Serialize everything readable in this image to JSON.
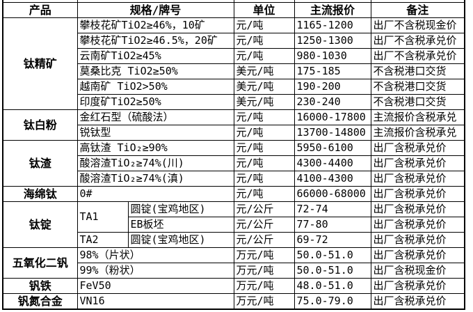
{
  "table_title": "titanium-vanadium-price-table",
  "header": {
    "product": "产品",
    "spec": "规格/牌号",
    "unit": "单位",
    "price": "主流报价",
    "note": "备注"
  },
  "rows": [
    {
      "product": "钛精矿",
      "spec": "攀枝花矿TiO2≥46%，10矿",
      "unit": "元/吨",
      "price": "1165-1200",
      "note": "出厂不含税现金价"
    },
    {
      "spec": "攀枝花矿TiO2≥46.5%，20矿",
      "unit": "元/吨",
      "price": "1250-1300",
      "note": "出厂不含税承兑价"
    },
    {
      "spec": "云南矿TiO2≥45%",
      "unit": "元/吨",
      "price": "980-1030",
      "note": "出厂不含税承兑价"
    },
    {
      "spec": "莫桑比克 TiO2≥50%",
      "unit": "美元/吨",
      "price": "175-185",
      "note": "不含税港口交货"
    },
    {
      "spec": "越南矿 TiO2>50%",
      "unit": "美元/吨",
      "price": "190-200",
      "note": "不含税港口交货"
    },
    {
      "spec": "印度矿TiO2≥50%",
      "unit": "美元/吨",
      "price": "230-240",
      "note": "不含税港口交货"
    },
    {
      "product": "钛白粉",
      "spec": "金红石型（硫酸法）",
      "unit": "元/吨",
      "price": "16000-17800",
      "note": "主流报价含税承兑"
    },
    {
      "spec": "锐钛型",
      "unit": "元/吨",
      "price": "13700-14800",
      "note": "主流报价含税承兑"
    },
    {
      "product": "钛渣",
      "spec": "高钛渣 TiO₂≥90%",
      "unit": "元/吨",
      "price": "5950-6100",
      "note": "出厂含税承兑价"
    },
    {
      "spec": "酸溶渣TiO₂≥74%(川)",
      "unit": "元/吨",
      "price": "4300-4400",
      "note": "出厂含税承兑价"
    },
    {
      "spec": "酸溶渣TiO₂≥74%(滇)",
      "unit": "元/吨",
      "price": "4100-4300",
      "note": "出厂含税承兑价"
    },
    {
      "product": "海绵钛",
      "spec": "0#",
      "unit": "元/吨",
      "price": "66000-68000",
      "note": "出厂含税承兑价"
    },
    {
      "product": "钛锭",
      "grade": "TA1",
      "spec": "圆锭(宝鸡地区)",
      "unit": "元/公斤",
      "price": "72-74",
      "note": "出厂含税承兑价"
    },
    {
      "spec": "EB板坯",
      "unit": "元/公斤",
      "price": "77-80",
      "note": "出厂含税承兑价"
    },
    {
      "grade": "TA2",
      "spec": "圆锭(宝鸡地区)",
      "unit": "元/公斤",
      "price": "69-72",
      "note": "出厂含税承兑价"
    },
    {
      "product": "五氧化二钒",
      "spec": "98%（片状）",
      "unit": "万元/吨",
      "price": "50.0-51.0",
      "note": "出厂含税承兑价"
    },
    {
      "spec": "99%（粉状）",
      "unit": "万元/吨",
      "price": "50.0-51.0",
      "note": "出厂含税现金价"
    },
    {
      "product": "钒铁",
      "spec": "FeV50",
      "unit": "万元/吨",
      "price": "48.0-51.0",
      "note": "出厂含税承兑价"
    },
    {
      "product": "钒氮合金",
      "spec": "VN16",
      "unit": "万元/吨",
      "price": "75.0-79.0",
      "note": "出厂含税承兑价"
    }
  ]
}
